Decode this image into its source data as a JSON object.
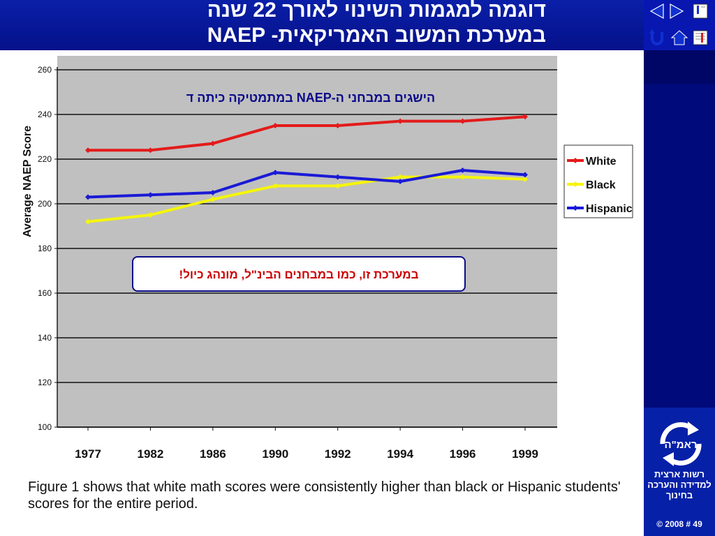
{
  "title": {
    "line1": "דוגמה למגמות השינוי לאורך 22 שנה",
    "line2": "במערכת המשוב האמריקאית- NAEP"
  },
  "colors": {
    "title_bar": "#0a1fa8",
    "panel": "#000a7a",
    "plot_bg": "#c0c0c0",
    "white_series": "#e31b1b",
    "black_series": "#f5f50a",
    "hispanic_series": "#1a1ad6",
    "callout_text": "#cc0000",
    "chart_title_text": "#0a0a8a"
  },
  "nav": {
    "icons": [
      "prev-icon",
      "next-icon",
      "first-slide-icon",
      "return-icon",
      "home-icon",
      "last-slide-icon"
    ]
  },
  "org": {
    "logo_text": "ראמ\"ה",
    "name": "רשות ארצית למדידה והערכה בחינוך"
  },
  "slide_number": "© 2008 # 49",
  "callout": "במערכת זו, כמו במבחנים הבינ\"ל, מונהג כיול!",
  "caption": "Figure 1 shows that white math scores were consistently higher than black or Hispanic students' scores for the entire period.",
  "chart_data": {
    "type": "line",
    "title": "הישגים במבחני ה-NAEP במתמטיקה כיתה ד",
    "xlabel": "",
    "ylabel": "Average NAEP Score",
    "categories": [
      "1977",
      "1982",
      "1986",
      "1990",
      "1992",
      "1994",
      "1996",
      "1999"
    ],
    "ylim": [
      100,
      260
    ],
    "yticks": [
      100,
      120,
      140,
      160,
      180,
      200,
      220,
      240,
      260
    ],
    "grid": true,
    "legend_position": "right",
    "series": [
      {
        "name": "White",
        "color": "#e31b1b",
        "values": [
          224,
          224,
          227,
          235,
          235,
          237,
          237,
          239
        ]
      },
      {
        "name": "Black",
        "color": "#f5f50a",
        "values": [
          192,
          195,
          202,
          208,
          208,
          212,
          212,
          211
        ]
      },
      {
        "name": "Hispanic",
        "color": "#1a1ad6",
        "values": [
          203,
          204,
          205,
          214,
          212,
          210,
          215,
          213
        ]
      }
    ]
  }
}
